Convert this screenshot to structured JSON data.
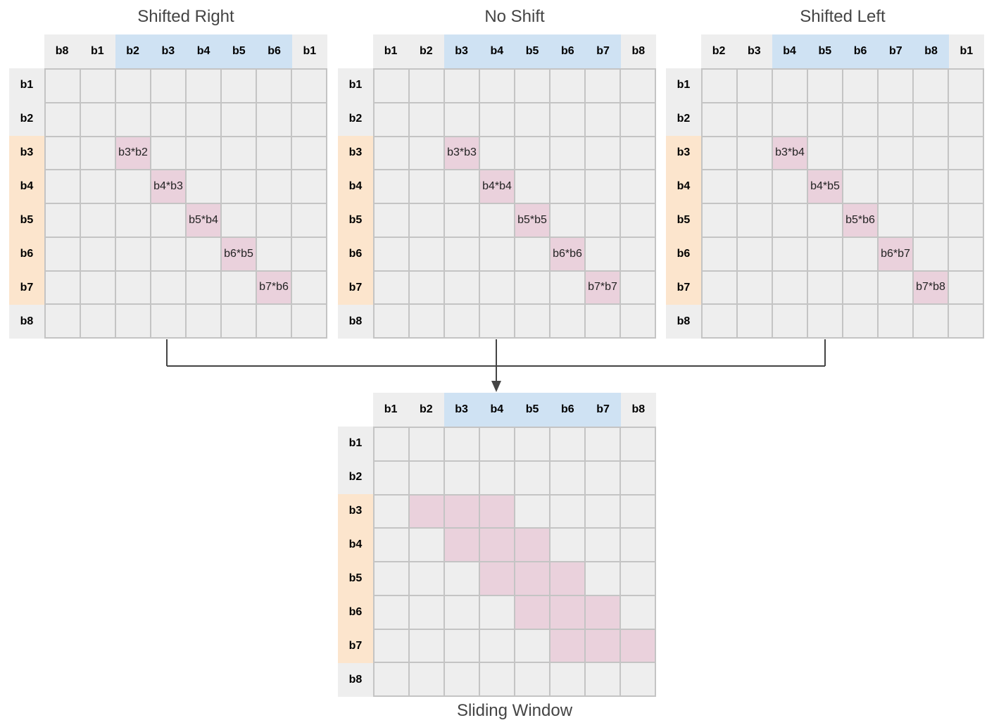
{
  "matrices": [
    {
      "title": "Shifted Right",
      "col_headers": [
        "b8",
        "b1",
        "b2",
        "b3",
        "b4",
        "b5",
        "b6",
        "b1"
      ],
      "row_headers": [
        "b1",
        "b2",
        "b3",
        "b4",
        "b5",
        "b6",
        "b7",
        "b8"
      ],
      "highlight_cols": [
        2,
        3,
        4,
        5,
        6
      ],
      "highlight_rows": [
        2,
        3,
        4,
        5,
        6
      ],
      "filled": [
        {
          "row": 2,
          "col": 2,
          "label": "b3*b2"
        },
        {
          "row": 3,
          "col": 3,
          "label": "b4*b3"
        },
        {
          "row": 4,
          "col": 4,
          "label": "b5*b4"
        },
        {
          "row": 5,
          "col": 5,
          "label": "b6*b5"
        },
        {
          "row": 6,
          "col": 6,
          "label": "b7*b6"
        }
      ]
    },
    {
      "title": "No Shift",
      "col_headers": [
        "b1",
        "b2",
        "b3",
        "b4",
        "b5",
        "b6",
        "b7",
        "b8"
      ],
      "row_headers": [
        "b1",
        "b2",
        "b3",
        "b4",
        "b5",
        "b6",
        "b7",
        "b8"
      ],
      "highlight_cols": [
        2,
        3,
        4,
        5,
        6
      ],
      "highlight_rows": [
        2,
        3,
        4,
        5,
        6
      ],
      "filled": [
        {
          "row": 2,
          "col": 2,
          "label": "b3*b3"
        },
        {
          "row": 3,
          "col": 3,
          "label": "b4*b4"
        },
        {
          "row": 4,
          "col": 4,
          "label": "b5*b5"
        },
        {
          "row": 5,
          "col": 5,
          "label": "b6*b6"
        },
        {
          "row": 6,
          "col": 6,
          "label": "b7*b7"
        }
      ]
    },
    {
      "title": "Shifted Left",
      "col_headers": [
        "b2",
        "b3",
        "b4",
        "b5",
        "b6",
        "b7",
        "b8",
        "b1"
      ],
      "row_headers": [
        "b1",
        "b2",
        "b3",
        "b4",
        "b5",
        "b6",
        "b7",
        "b8"
      ],
      "highlight_cols": [
        2,
        3,
        4,
        5,
        6
      ],
      "highlight_rows": [
        2,
        3,
        4,
        5,
        6
      ],
      "filled": [
        {
          "row": 2,
          "col": 2,
          "label": "b3*b4"
        },
        {
          "row": 3,
          "col": 3,
          "label": "b4*b5"
        },
        {
          "row": 4,
          "col": 4,
          "label": "b5*b6"
        },
        {
          "row": 5,
          "col": 5,
          "label": "b6*b7"
        },
        {
          "row": 6,
          "col": 6,
          "label": "b7*b8"
        }
      ]
    },
    {
      "title": "Sliding Window",
      "col_headers": [
        "b1",
        "b2",
        "b3",
        "b4",
        "b5",
        "b6",
        "b7",
        "b8"
      ],
      "row_headers": [
        "b1",
        "b2",
        "b3",
        "b4",
        "b5",
        "b6",
        "b7",
        "b8"
      ],
      "highlight_cols": [
        2,
        3,
        4,
        5,
        6
      ],
      "highlight_rows": [
        2,
        3,
        4,
        5,
        6
      ],
      "filled": [
        {
          "row": 2,
          "col": 1,
          "label": ""
        },
        {
          "row": 2,
          "col": 2,
          "label": ""
        },
        {
          "row": 2,
          "col": 3,
          "label": ""
        },
        {
          "row": 3,
          "col": 2,
          "label": ""
        },
        {
          "row": 3,
          "col": 3,
          "label": ""
        },
        {
          "row": 3,
          "col": 4,
          "label": ""
        },
        {
          "row": 4,
          "col": 3,
          "label": ""
        },
        {
          "row": 4,
          "col": 4,
          "label": ""
        },
        {
          "row": 4,
          "col": 5,
          "label": ""
        },
        {
          "row": 5,
          "col": 4,
          "label": ""
        },
        {
          "row": 5,
          "col": 5,
          "label": ""
        },
        {
          "row": 5,
          "col": 6,
          "label": ""
        },
        {
          "row": 6,
          "col": 5,
          "label": ""
        },
        {
          "row": 6,
          "col": 6,
          "label": ""
        },
        {
          "row": 6,
          "col": 7,
          "label": ""
        }
      ]
    }
  ],
  "colors": {
    "header_bg": "#eeeeee",
    "col_highlight": "#cfe2f3",
    "row_highlight": "#fce5cd",
    "cell_bg": "#eeeeee",
    "cell_filled": "#ead1dc",
    "grid_line": "#c4c4c4",
    "connector": "#444444"
  }
}
